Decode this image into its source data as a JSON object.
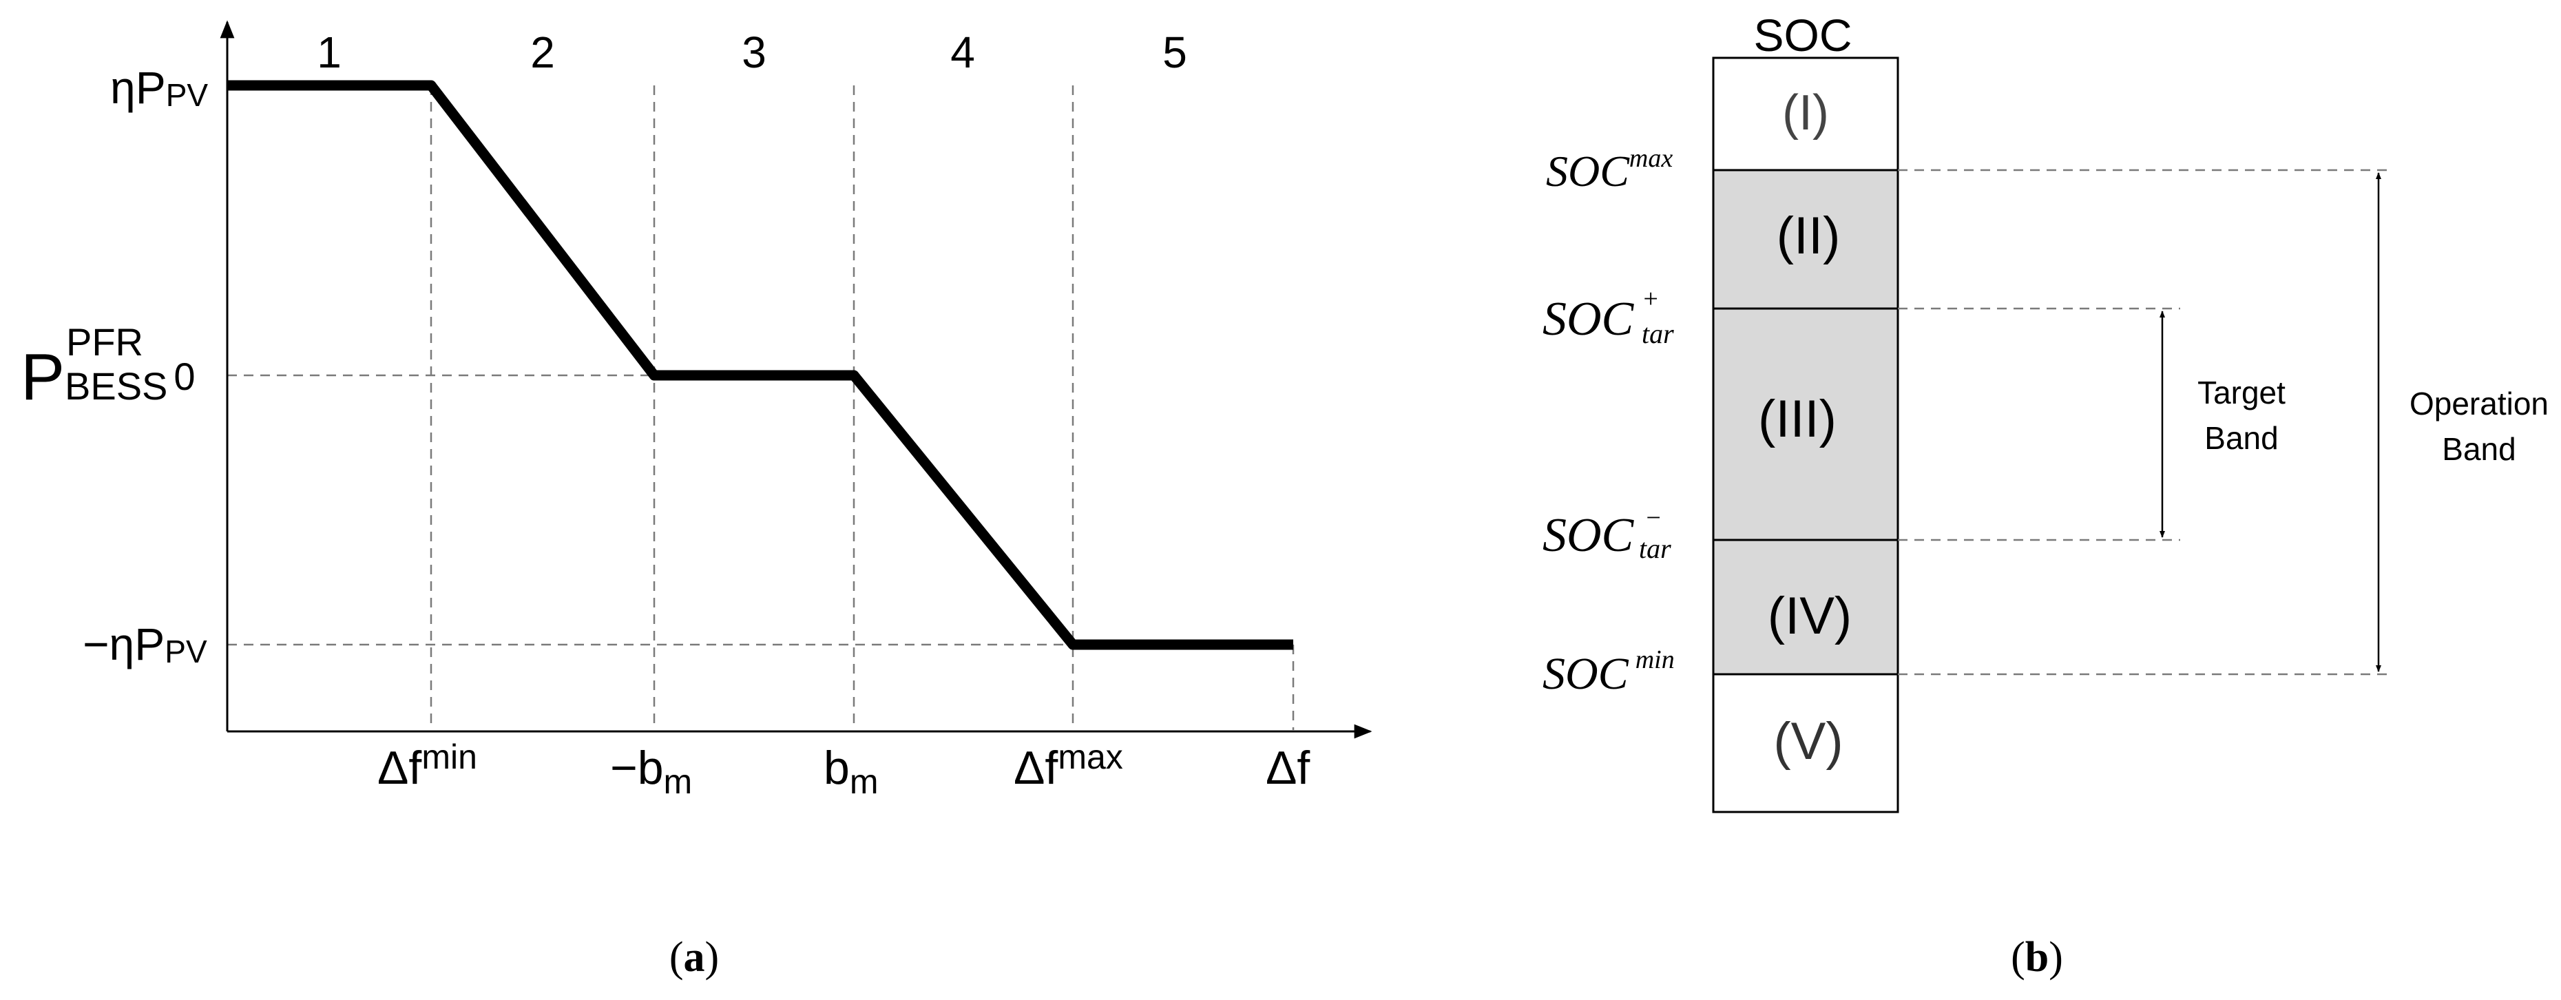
{
  "panel_a": {
    "regions": [
      "1",
      "2",
      "3",
      "4",
      "5"
    ],
    "y_labels": {
      "top": {
        "main": "ηP",
        "sub": "PV"
      },
      "zero": "0",
      "bottom": {
        "main": "−ηP",
        "sub": "PV"
      }
    },
    "y_axis_title": {
      "main": "P",
      "sup": "PFR",
      "sub": "BESS"
    },
    "x_labels": [
      {
        "main": "Δf",
        "sup": "min"
      },
      {
        "main": "−b",
        "sub": "m"
      },
      {
        "main": "b",
        "sub": "m"
      },
      {
        "main": "Δf",
        "sup": "max"
      },
      {
        "main": "Δf"
      }
    ],
    "caption": {
      "open": "(",
      "letter": "a",
      "close": ")"
    }
  },
  "panel_b": {
    "title": "SOC",
    "zones": [
      {
        "label": "(I)",
        "shaded": false
      },
      {
        "label": "(II)",
        "shaded": true
      },
      {
        "label": "(III)",
        "shaded": true
      },
      {
        "label": "(IV)",
        "shaded": true
      },
      {
        "label": "(V)",
        "shaded": false
      }
    ],
    "thresholds": [
      {
        "main": "SOC",
        "sup": "max"
      },
      {
        "main": "SOC",
        "sup": "+",
        "sub": "tar"
      },
      {
        "main": "SOC",
        "sup": "−",
        "sub": "tar"
      },
      {
        "main": "SOC",
        "sup": "min"
      }
    ],
    "target_band": [
      "Target",
      "Band"
    ],
    "operation_band": [
      "Operation",
      "Band"
    ],
    "caption": {
      "open": "(",
      "letter": "b",
      "close": ")"
    }
  },
  "colors": {
    "line": "#000000",
    "dashed": "#7a7a7a",
    "shaded_zone": "#d9d9d9"
  }
}
